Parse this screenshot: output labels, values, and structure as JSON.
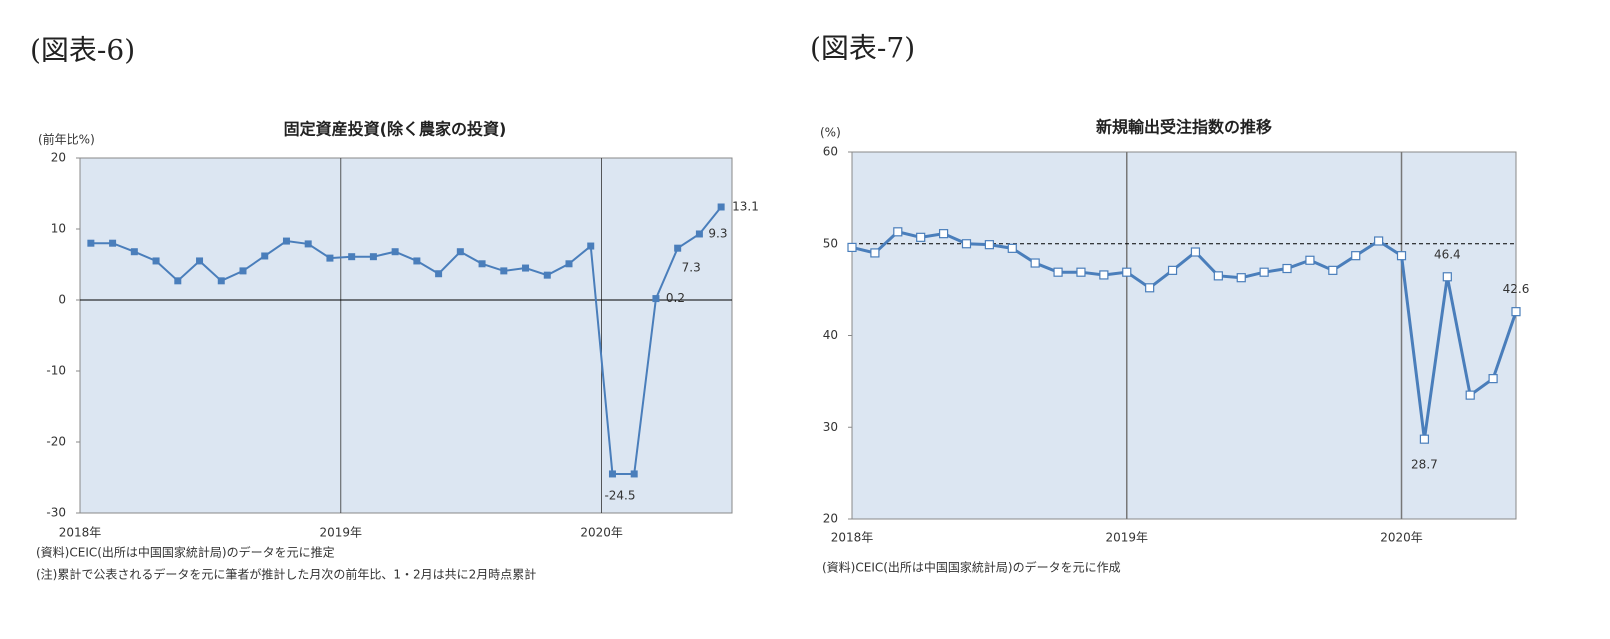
{
  "chart_data": [
    {
      "type": "line",
      "header": "(図表-6)",
      "title": "固定資産投資(除く農家の投資)",
      "y_label": "(前年比%)",
      "categories": [
        null,
        null,
        null,
        null,
        null,
        null,
        null,
        null,
        null,
        null,
        null,
        null,
        null,
        null,
        null,
        null,
        null,
        null,
        null,
        null,
        null,
        null,
        null,
        null,
        null,
        null,
        null,
        null,
        null,
        null
      ],
      "series": [
        {
          "name": "固定資産投資",
          "color": "#4a7ebb",
          "marker": "filled",
          "values": [
            8.0,
            8.0,
            6.8,
            5.5,
            2.7,
            5.5,
            2.7,
            4.1,
            6.2,
            8.3,
            7.9,
            5.9,
            6.1,
            6.1,
            6.8,
            5.5,
            3.7,
            6.8,
            5.1,
            4.1,
            4.5,
            3.5,
            5.1,
            7.6,
            -24.5,
            -24.5,
            0.2,
            7.3,
            9.3,
            13.1
          ],
          "value_labels": [
            null,
            null,
            null,
            null,
            null,
            null,
            null,
            null,
            null,
            null,
            null,
            null,
            null,
            null,
            null,
            null,
            null,
            null,
            null,
            null,
            null,
            null,
            null,
            null,
            "-24.5",
            null,
            "0.2",
            "7.3",
            "9.3",
            "13.1"
          ]
        }
      ],
      "negative_label_color": "#ff0000",
      "xlim": [
        -0.5,
        29.5
      ],
      "xticks": [
        {
          "value": -0.5,
          "label": "2018年"
        },
        {
          "value": 11.5,
          "label": "2019年"
        },
        {
          "value": 23.5,
          "label": "2020年"
        }
      ],
      "ylim": [
        -30,
        20
      ],
      "yticks": [
        -30,
        -20,
        -10,
        0,
        10,
        20
      ],
      "reference_line": 0,
      "reference_style": "solid",
      "notes": [
        "(資料)CEIC(出所は中国国家統計局)のデータを元に推定",
        "(注)累計で公表されるデータを元に筆者が推計した月次の前年比、1・2月は共に2月時点累計"
      ]
    },
    {
      "type": "line",
      "header": "(図表-7)",
      "title": "新規輸出受注指数の推移",
      "y_label": "(%)",
      "categories": [
        null,
        null,
        null,
        null,
        null,
        null,
        null,
        null,
        null,
        null,
        null,
        null,
        null,
        null,
        null,
        null,
        null,
        null,
        null,
        null,
        null,
        null,
        null,
        null,
        null,
        null,
        null,
        null,
        null,
        null
      ],
      "series": [
        {
          "name": "新規輸出受注指数",
          "color": "#4a7ebb",
          "marker": "open",
          "values": [
            49.6,
            49.0,
            51.3,
            50.7,
            51.1,
            50.0,
            49.9,
            49.5,
            47.9,
            46.9,
            46.9,
            46.6,
            46.9,
            45.2,
            47.1,
            49.1,
            46.5,
            46.3,
            46.9,
            47.3,
            48.2,
            47.1,
            48.7,
            50.3,
            48.7,
            28.7,
            46.4,
            33.5,
            35.3,
            42.6
          ],
          "value_labels": [
            null,
            null,
            null,
            null,
            null,
            null,
            null,
            null,
            null,
            null,
            null,
            null,
            null,
            null,
            null,
            null,
            null,
            null,
            null,
            null,
            null,
            null,
            null,
            null,
            null,
            "28.7",
            "46.4",
            null,
            null,
            "42.6"
          ]
        }
      ],
      "xlim": [
        0,
        29
      ],
      "xticks": [
        {
          "value": 0,
          "label": "2018年"
        },
        {
          "value": 12,
          "label": "2019年"
        },
        {
          "value": 24,
          "label": "2020年"
        }
      ],
      "ylim": [
        20,
        60
      ],
      "yticks": [
        20,
        30,
        40,
        50,
        60
      ],
      "reference_line": 50,
      "reference_style": "dashed",
      "notes": [
        "(資料)CEIC(出所は中国国家統計局)のデータを元に作成"
      ]
    }
  ]
}
